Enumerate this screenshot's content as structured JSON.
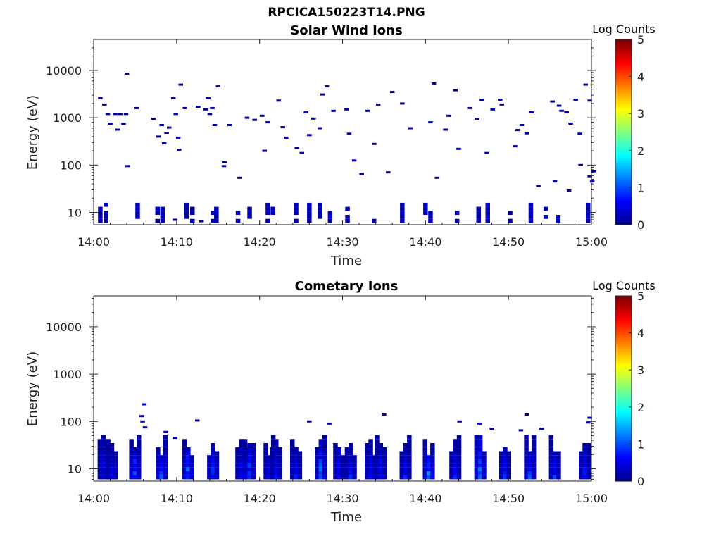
{
  "figure": {
    "title": "RPCICA150223T14.PNG"
  },
  "colors": {
    "axis": "#262626",
    "colormap": [
      "#00008f",
      "#0000ff",
      "#0080ff",
      "#00ffff",
      "#80ff80",
      "#ffff00",
      "#ff8000",
      "#ff0000",
      "#800000"
    ]
  },
  "chart_data": [
    {
      "type": "heatmap",
      "title": "Solar Wind Ions",
      "xlabel": "Time",
      "ylabel": "Energy (eV)",
      "y_scale": "log",
      "xlim": [
        "14:00",
        "15:00"
      ],
      "ylim": [
        5.5,
        45000
      ],
      "x_ticks": [
        "14:00",
        "14:10",
        "14:20",
        "14:30",
        "14:40",
        "14:50",
        "15:00"
      ],
      "y_ticks": [
        10,
        100,
        1000,
        10000
      ],
      "y_tick_labels": [
        "10",
        "100",
        "1000",
        "10000"
      ],
      "colorbar": {
        "label": "Log Counts",
        "min": 0,
        "max": 5,
        "ticks": [
          "0",
          "1",
          "2",
          "3",
          "4",
          "5"
        ]
      },
      "sparse_points": [
        [
          "14:00.8",
          2600,
          0.1
        ],
        [
          "14:01.3",
          1900,
          0.1
        ],
        [
          "14:01.7",
          1200,
          0.1
        ],
        [
          "14:02.0",
          750,
          0.1
        ],
        [
          "14:02.6",
          1200,
          0.1
        ],
        [
          "14:02.9",
          560,
          0.1
        ],
        [
          "14:03.2",
          1200,
          0.1
        ],
        [
          "14:03.6",
          740,
          0.1
        ],
        [
          "14:03.9",
          1200,
          0.1
        ],
        [
          "14:04.0",
          8500,
          0.1
        ],
        [
          "14:04.1",
          95,
          0.1
        ],
        [
          "14:05.2",
          1600,
          0.1
        ],
        [
          "14:07.2",
          950,
          0.1
        ],
        [
          "14:07.8",
          400,
          0.1
        ],
        [
          "14:08.2",
          700,
          0.1
        ],
        [
          "14:08.5",
          290,
          0.1
        ],
        [
          "14:08.8",
          480,
          0.1
        ],
        [
          "14:09.1",
          620,
          0.1
        ],
        [
          "14:09.6",
          2600,
          0.1
        ],
        [
          "14:09.9",
          1200,
          0.1
        ],
        [
          "14:10.2",
          380,
          0.1
        ],
        [
          "14:10.3",
          210,
          0.1
        ],
        [
          "14:10.5",
          5000,
          0.1
        ],
        [
          "14:11.0",
          1600,
          0.1
        ],
        [
          "14:12.6",
          1700,
          0.1
        ],
        [
          "14:13.5",
          1500,
          0.1
        ],
        [
          "14:13.8",
          2600,
          0.1
        ],
        [
          "14:14.0",
          1200,
          0.1
        ],
        [
          "14:14.3",
          1600,
          0.1
        ],
        [
          "14:14.6",
          700,
          0.1
        ],
        [
          "14:15.0",
          4600,
          0.1
        ],
        [
          "14:15.7",
          95,
          0.1
        ],
        [
          "14:15.8",
          115,
          0.1
        ],
        [
          "14:16.4",
          700,
          0.1
        ],
        [
          "14:17.6",
          54,
          0.1
        ],
        [
          "14:18.5",
          1000,
          0.1
        ],
        [
          "14:19.4",
          900,
          0.1
        ],
        [
          "14:20.3",
          1100,
          0.1
        ],
        [
          "14:20.6",
          200,
          0.1
        ],
        [
          "14:21.0",
          800,
          0.1
        ],
        [
          "14:22.3",
          2300,
          0.1
        ],
        [
          "14:22.8",
          630,
          0.1
        ],
        [
          "14:23.2",
          380,
          0.1
        ],
        [
          "14:24.5",
          230,
          0.1
        ],
        [
          "14:25.1",
          180,
          0.1
        ],
        [
          "14:25.6",
          1300,
          0.1
        ],
        [
          "14:26.0",
          430,
          0.1
        ],
        [
          "14:26.5",
          960,
          0.1
        ],
        [
          "14:27.3",
          600,
          0.1
        ],
        [
          "14:27.6",
          3100,
          0.1
        ],
        [
          "14:28.1",
          4600,
          0.1
        ],
        [
          "14:28.9",
          1400,
          0.1
        ],
        [
          "14:30.5",
          1500,
          0.1
        ],
        [
          "14:30.8",
          460,
          0.1
        ],
        [
          "14:31.4",
          125,
          0.1
        ],
        [
          "14:32.3",
          65,
          0.1
        ],
        [
          "14:33.0",
          1400,
          0.1
        ],
        [
          "14:33.8",
          280,
          0.1
        ],
        [
          "14:34.3",
          1900,
          0.1
        ],
        [
          "14:35.5",
          70,
          0.1
        ],
        [
          "14:36.0",
          3500,
          0.1
        ],
        [
          "14:37.2",
          2000,
          0.1
        ],
        [
          "14:38.2",
          600,
          0.1
        ],
        [
          "14:40.6",
          800,
          0.1
        ],
        [
          "14:41.0",
          5300,
          0.1
        ],
        [
          "14:41.4",
          54,
          0.1
        ],
        [
          "14:42.4",
          560,
          0.1
        ],
        [
          "14:42.8",
          1100,
          0.1
        ],
        [
          "14:43.6",
          3800,
          0.1
        ],
        [
          "14:44.0",
          220,
          0.1
        ],
        [
          "14:45.3",
          1600,
          0.1
        ],
        [
          "14:46.2",
          950,
          0.1
        ],
        [
          "14:46.8",
          2400,
          0.1
        ],
        [
          "14:47.4",
          180,
          0.1
        ],
        [
          "14:48.1",
          1500,
          0.1
        ],
        [
          "14:49.0",
          2400,
          0.1
        ],
        [
          "14:49.2",
          1900,
          0.1
        ],
        [
          "14:50.8",
          250,
          0.1
        ],
        [
          "14:51.1",
          550,
          0.1
        ],
        [
          "14:51.6",
          700,
          0.1
        ],
        [
          "14:52.2",
          470,
          0.1
        ],
        [
          "14:52.8",
          1300,
          0.1
        ],
        [
          "14:55.3",
          2200,
          0.1
        ],
        [
          "14:56.1",
          1800,
          0.1
        ],
        [
          "14:56.4",
          1400,
          0.1
        ],
        [
          "14:57.0",
          1300,
          0.1
        ],
        [
          "14:57.5",
          750,
          0.1
        ],
        [
          "14:58.1",
          2400,
          0.1
        ],
        [
          "14:58.6",
          460,
          0.1
        ],
        [
          "14:59.3",
          5000,
          0.1
        ],
        [
          "14:59.8",
          2300,
          0.1
        ],
        [
          "15:00.1",
          45,
          0.1
        ],
        [
          "15:00.3",
          74,
          0.1
        ],
        [
          "14:53.6",
          36,
          0.1
        ],
        [
          "14:55.6",
          45,
          0.1
        ],
        [
          "14:57.3",
          29,
          0.1
        ],
        [
          "14:58.7",
          100,
          0.1
        ],
        [
          "14:59.8",
          58,
          0.1
        ],
        [
          "14:09.8",
          7,
          0.1
        ],
        [
          "14:13.0",
          6.5,
          0.1
        ]
      ],
      "bursts": [
        [
          "14:00.8",
          0,
          0.3
        ],
        [
          "14:01.5",
          0,
          0.3
        ],
        [
          "14:05.3",
          0,
          0.3
        ],
        [
          "14:07.7",
          0,
          0.3
        ],
        [
          "14:08.3",
          0,
          0.3
        ],
        [
          "14:11.2",
          0,
          0.3
        ],
        [
          "14:11.9",
          0,
          0.3
        ],
        [
          "14:14.4",
          0,
          0.3
        ],
        [
          "14:14.8",
          0,
          0.3
        ],
        [
          "14:17.4",
          0,
          0.3
        ],
        [
          "14:18.8",
          0,
          0.3
        ],
        [
          "14:21.0",
          0,
          0.3
        ],
        [
          "14:21.6",
          0,
          0.3
        ],
        [
          "14:24.4",
          0,
          0.3
        ],
        [
          "14:26.0",
          0,
          0.3
        ],
        [
          "14:27.3",
          0,
          0.3
        ],
        [
          "14:28.5",
          0,
          0.3
        ],
        [
          "14:30.6",
          0,
          0.3
        ],
        [
          "14:33.8",
          0,
          0.3
        ],
        [
          "14:37.2",
          0,
          0.3
        ],
        [
          "14:40.0",
          0,
          0.3
        ],
        [
          "14:40.6",
          0,
          0.3
        ],
        [
          "14:43.8",
          0,
          0.3
        ],
        [
          "14:46.4",
          0,
          0.3
        ],
        [
          "14:47.5",
          0,
          0.3
        ],
        [
          "14:50.2",
          0,
          0.3
        ],
        [
          "14:52.7",
          0,
          0.3
        ],
        [
          "14:54.5",
          0,
          0.3
        ],
        [
          "14:56.0",
          0,
          0.3
        ],
        [
          "14:59.6",
          0,
          0.3
        ]
      ]
    },
    {
      "type": "heatmap",
      "title": "Cometary Ions",
      "xlabel": "Time",
      "ylabel": "Energy (eV)",
      "y_scale": "log",
      "xlim": [
        "14:00",
        "15:00"
      ],
      "ylim": [
        5.5,
        45000
      ],
      "x_ticks": [
        "14:00",
        "14:10",
        "14:20",
        "14:30",
        "14:40",
        "14:50",
        "15:00"
      ],
      "y_ticks": [
        10,
        100,
        1000,
        10000
      ],
      "y_tick_labels": [
        "10",
        "100",
        "1000",
        "10000"
      ],
      "colorbar": {
        "label": "Log Counts",
        "min": 0,
        "max": 5,
        "ticks": [
          "0",
          "1",
          "2",
          "3",
          "4",
          "5"
        ]
      },
      "sparse_points": [
        [
          "14:06.1",
          230,
          0.3
        ],
        [
          "14:05.8",
          130,
          0.3
        ],
        [
          "14:05.9",
          100,
          0.3
        ],
        [
          "14:06.2",
          75,
          0.3
        ],
        [
          "14:08.7",
          60,
          0.2
        ],
        [
          "14:09.8",
          45,
          0.2
        ],
        [
          "14:12.5",
          105,
          0.2
        ],
        [
          "14:26.0",
          100,
          0.2
        ],
        [
          "14:28.4",
          90,
          0.2
        ],
        [
          "14:35.0",
          140,
          0.3
        ],
        [
          "14:44.1",
          100,
          0.3
        ],
        [
          "14:46.5",
          90,
          0.3
        ],
        [
          "14:48.0",
          70,
          0.2
        ],
        [
          "14:51.5",
          65,
          0.3
        ],
        [
          "14:52.2",
          140,
          0.2
        ],
        [
          "14:54.0",
          70,
          0.2
        ],
        [
          "14:59.8",
          120,
          0.3
        ],
        [
          "14:59.6",
          95,
          0.3
        ]
      ],
      "bursts": [
        [
          "14:01.2",
          0,
          0.6
        ],
        [
          "14:02.2",
          0,
          0.6
        ],
        [
          "14:05.0",
          0,
          1.2
        ],
        [
          "14:08.2",
          0,
          1.6
        ],
        [
          "14:11.4",
          0,
          1.4
        ],
        [
          "14:14.4",
          0,
          1.0
        ],
        [
          "14:17.8",
          0,
          0.7
        ],
        [
          "14:18.8",
          0,
          1.2
        ],
        [
          "14:21.2",
          0,
          0.7
        ],
        [
          "14:22.0",
          0,
          0.7
        ],
        [
          "14:24.4",
          0,
          0.8
        ],
        [
          "14:27.4",
          0,
          1.3
        ],
        [
          "14:29.6",
          0,
          0.8
        ],
        [
          "14:31.0",
          0,
          0.8
        ],
        [
          "14:33.4",
          0,
          0.7
        ],
        [
          "14:34.6",
          0,
          0.8
        ],
        [
          "14:37.6",
          0,
          0.8
        ],
        [
          "14:40.4",
          0,
          1.5
        ],
        [
          "14:43.6",
          0,
          0.8
        ],
        [
          "14:46.6",
          0,
          1.5
        ],
        [
          "14:49.6",
          0,
          0.9
        ],
        [
          "14:52.6",
          0,
          1.2
        ],
        [
          "14:55.6",
          0,
          0.9
        ],
        [
          "14:59.2",
          0,
          0.8
        ]
      ]
    }
  ]
}
